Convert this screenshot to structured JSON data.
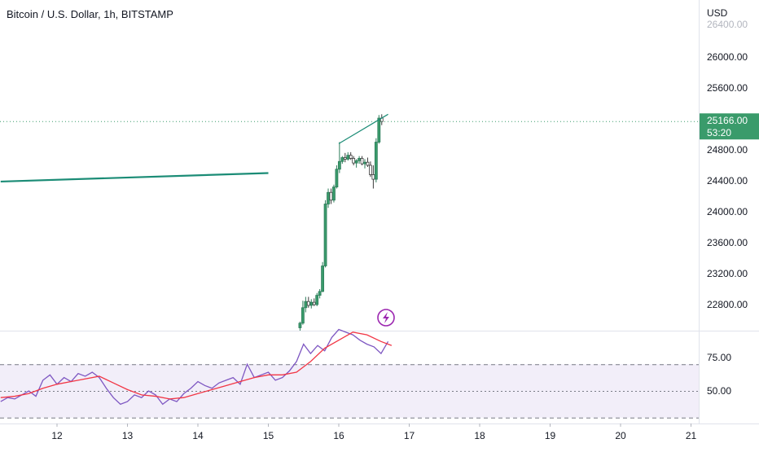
{
  "header": {
    "title": "Bitcoin / U.S. Dollar, 1h, BITSTAMP"
  },
  "price_scale": {
    "currency": "USD",
    "ticks": [
      "26000.00",
      "25600.00",
      "24800.00",
      "24400.00",
      "24000.00",
      "23600.00",
      "23200.00",
      "22800.00"
    ],
    "last_price": "25166.00",
    "countdown": "53:20"
  },
  "rsi_scale": {
    "ticks": [
      "75.00",
      "50.00"
    ]
  },
  "time_axis": {
    "ticks": [
      "12",
      "13",
      "14",
      "15",
      "16",
      "17",
      "18",
      "19",
      "20",
      "21"
    ]
  },
  "icons": {
    "alert": "lightning-bolt-icon"
  },
  "colors": {
    "up": "#26a69a",
    "down": "#ef5350",
    "trend_line": "#1b8c76",
    "rsi_line": "#7e57c2",
    "rsi_ma": "#f23645",
    "rsi_band": "#ede7f6",
    "last_price_badge": "#3a9b6b"
  },
  "chart_data": [
    {
      "type": "candlestick",
      "title": "Bitcoin / U.S. Dollar, 1h, BITSTAMP",
      "ylabel": "USD",
      "ylim": [
        22550,
        26400
      ],
      "x_ticks": [
        "12",
        "13",
        "14",
        "15",
        "16",
        "17",
        "18",
        "19",
        "20",
        "21"
      ],
      "y_ticks": [
        26000,
        25600,
        24800,
        24400,
        24000,
        23600,
        23200,
        22800
      ],
      "last_price": 25166,
      "candles": [
        {
          "x": 15.45,
          "o": 22500,
          "h": 22580,
          "l": 22450,
          "c": 22560
        },
        {
          "x": 15.49,
          "o": 22560,
          "h": 22850,
          "l": 22540,
          "c": 22760
        },
        {
          "x": 15.53,
          "o": 22760,
          "h": 22900,
          "l": 22700,
          "c": 22840
        },
        {
          "x": 15.57,
          "o": 22840,
          "h": 22900,
          "l": 22760,
          "c": 22790
        },
        {
          "x": 15.61,
          "o": 22790,
          "h": 22870,
          "l": 22750,
          "c": 22830
        },
        {
          "x": 15.65,
          "o": 22830,
          "h": 22880,
          "l": 22780,
          "c": 22800
        },
        {
          "x": 15.69,
          "o": 22800,
          "h": 22950,
          "l": 22780,
          "c": 22920
        },
        {
          "x": 15.73,
          "o": 22920,
          "h": 23000,
          "l": 22880,
          "c": 22970
        },
        {
          "x": 15.77,
          "o": 22970,
          "h": 23350,
          "l": 22960,
          "c": 23300
        },
        {
          "x": 15.81,
          "o": 23300,
          "h": 24150,
          "l": 23280,
          "c": 24100
        },
        {
          "x": 15.85,
          "o": 24100,
          "h": 24300,
          "l": 24050,
          "c": 24250
        },
        {
          "x": 15.89,
          "o": 24250,
          "h": 24300,
          "l": 24100,
          "c": 24150
        },
        {
          "x": 15.93,
          "o": 24150,
          "h": 24350,
          "l": 24120,
          "c": 24320
        },
        {
          "x": 15.97,
          "o": 24320,
          "h": 24600,
          "l": 24300,
          "c": 24550
        },
        {
          "x": 16.01,
          "o": 24550,
          "h": 24900,
          "l": 24500,
          "c": 24650
        },
        {
          "x": 16.05,
          "o": 24650,
          "h": 24720,
          "l": 24620,
          "c": 24700
        },
        {
          "x": 16.09,
          "o": 24700,
          "h": 24760,
          "l": 24640,
          "c": 24680
        },
        {
          "x": 16.13,
          "o": 24680,
          "h": 24770,
          "l": 24660,
          "c": 24730
        },
        {
          "x": 16.17,
          "o": 24730,
          "h": 24770,
          "l": 24670,
          "c": 24690
        },
        {
          "x": 16.21,
          "o": 24690,
          "h": 24720,
          "l": 24600,
          "c": 24630
        },
        {
          "x": 16.25,
          "o": 24630,
          "h": 24680,
          "l": 24570,
          "c": 24660
        },
        {
          "x": 16.29,
          "o": 24660,
          "h": 24720,
          "l": 24620,
          "c": 24690
        },
        {
          "x": 16.33,
          "o": 24690,
          "h": 24720,
          "l": 24600,
          "c": 24620
        },
        {
          "x": 16.37,
          "o": 24620,
          "h": 24680,
          "l": 24560,
          "c": 24640
        },
        {
          "x": 16.41,
          "o": 24640,
          "h": 24700,
          "l": 24580,
          "c": 24600
        },
        {
          "x": 16.45,
          "o": 24600,
          "h": 24650,
          "l": 24450,
          "c": 24480
        },
        {
          "x": 16.49,
          "o": 24480,
          "h": 24600,
          "l": 24300,
          "c": 24420
        },
        {
          "x": 16.53,
          "o": 24420,
          "h": 24950,
          "l": 24380,
          "c": 24900
        },
        {
          "x": 16.57,
          "o": 24900,
          "h": 25250,
          "l": 24880,
          "c": 25210
        },
        {
          "x": 16.61,
          "o": 25210,
          "h": 25260,
          "l": 25120,
          "c": 25166
        }
      ],
      "trend_lines": [
        {
          "points": [
            {
              "x": 11.2,
              "y": 24390
            },
            {
              "x": 15.0,
              "y": 24500
            }
          ]
        },
        {
          "points": [
            {
              "x": 16.0,
              "y": 24880
            },
            {
              "x": 16.7,
              "y": 25260
            }
          ]
        }
      ]
    },
    {
      "type": "line",
      "indicator": "RSI",
      "ylim": [
        20,
        102
      ],
      "y_ticks": [
        75,
        50
      ],
      "bands": {
        "upper": 70,
        "middle": 50,
        "lower": 30
      },
      "series": [
        {
          "role": "rsi",
          "x": [
            11.2,
            11.3,
            11.4,
            11.5,
            11.6,
            11.7,
            11.8,
            11.9,
            12.0,
            12.1,
            12.2,
            12.3,
            12.4,
            12.5,
            12.6,
            12.7,
            12.8,
            12.9,
            13.0,
            13.1,
            13.2,
            13.3,
            13.4,
            13.5,
            13.6,
            13.7,
            13.8,
            13.9,
            14.0,
            14.1,
            14.2,
            14.3,
            14.4,
            14.5,
            14.6,
            14.7,
            14.8,
            14.9,
            15.0,
            15.1,
            15.2,
            15.3,
            15.4,
            15.5,
            15.6,
            15.7,
            15.8,
            15.9,
            16.0,
            16.1,
            16.2,
            16.3,
            16.4,
            16.5,
            16.6,
            16.7
          ],
          "values": [
            42,
            45,
            44,
            47,
            50,
            46,
            58,
            62,
            55,
            60,
            57,
            63,
            61,
            64,
            60,
            52,
            45,
            40,
            42,
            47,
            45,
            50,
            47,
            40,
            44,
            42,
            48,
            52,
            57,
            54,
            52,
            56,
            58,
            60,
            55,
            70,
            60,
            62,
            64,
            58,
            60,
            65,
            72,
            85,
            78,
            84,
            80,
            90,
            96,
            94,
            92,
            88,
            85,
            83,
            78,
            87
          ]
        },
        {
          "role": "rsi_ma",
          "x": [
            11.2,
            11.4,
            11.6,
            11.8,
            12.0,
            12.2,
            12.4,
            12.6,
            12.8,
            13.0,
            13.2,
            13.4,
            13.6,
            13.8,
            14.0,
            14.2,
            14.4,
            14.6,
            14.8,
            15.0,
            15.2,
            15.4,
            15.6,
            15.8,
            16.0,
            16.2,
            16.4,
            16.6,
            16.75
          ],
          "values": [
            45,
            46,
            48,
            52,
            55,
            57,
            59,
            61,
            56,
            51,
            47,
            46,
            44,
            45,
            48,
            51,
            54,
            57,
            60,
            62,
            62,
            64,
            72,
            82,
            88,
            94,
            92,
            87,
            84
          ]
        }
      ]
    }
  ]
}
